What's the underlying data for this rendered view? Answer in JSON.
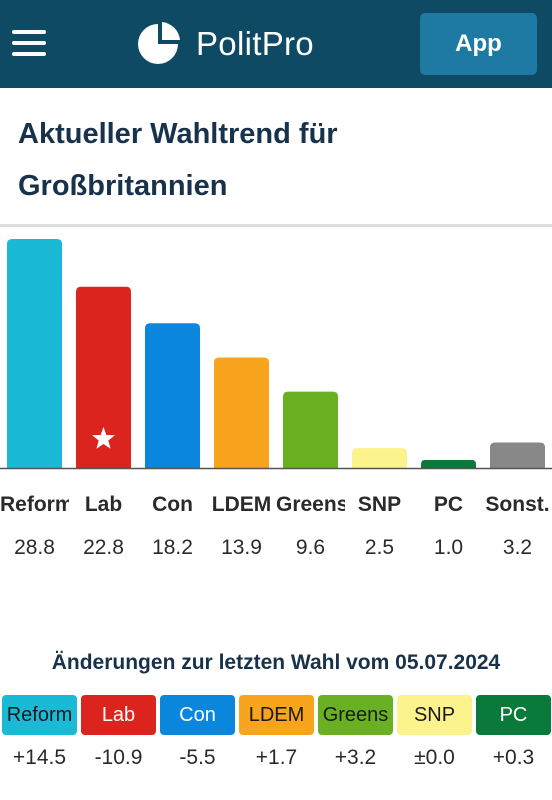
{
  "header": {
    "brand": "PolitPro",
    "app_button": "App",
    "bg_color": "#0e4a63",
    "menu_icon": "hamburger-menu-icon",
    "logo_icon": "pie-logo-icon"
  },
  "title": "Aktueller Wahltrend für Großbritannien",
  "chart_data": {
    "type": "bar",
    "categories": [
      "Reform",
      "Lab",
      "Con",
      "LDEM",
      "Greens",
      "SNP",
      "PC",
      "Sonst."
    ],
    "values": [
      28.8,
      22.8,
      18.2,
      13.9,
      9.6,
      2.5,
      1.0,
      3.2
    ],
    "value_labels": [
      "28.8",
      "22.8",
      "18.2",
      "13.9",
      "9.6",
      "2.5",
      "1.0",
      "3.2"
    ],
    "colors": [
      "#1ab9d6",
      "#dc241f",
      "#0a87dc",
      "#f8a41c",
      "#6ab023",
      "#fcf38c",
      "#0a7a3a",
      "#888888"
    ],
    "marked_category": "Lab",
    "mark_icon": "star-icon",
    "xlabel": "",
    "ylabel": ""
  },
  "changes": {
    "title": "Änderungen zur letzten Wahl vom 05.07.2024",
    "items": [
      {
        "party": "Reform",
        "delta": "+14.5",
        "bg": "#1ab9d6",
        "fg": "#1a1a1a"
      },
      {
        "party": "Lab",
        "delta": "-10.9",
        "bg": "#dc241f",
        "fg": "#ffffff"
      },
      {
        "party": "Con",
        "delta": "-5.5",
        "bg": "#0a87dc",
        "fg": "#ffffff"
      },
      {
        "party": "LDEM",
        "delta": "+1.7",
        "bg": "#f8a41c",
        "fg": "#1a1a1a"
      },
      {
        "party": "Greens",
        "delta": "+3.2",
        "bg": "#6ab023",
        "fg": "#1a1a1a"
      },
      {
        "party": "SNP",
        "delta": "±0.0",
        "bg": "#fcf38c",
        "fg": "#1a1a1a"
      },
      {
        "party": "PC",
        "delta": "+0.3",
        "bg": "#0a7a3a",
        "fg": "#ffffff"
      }
    ]
  }
}
